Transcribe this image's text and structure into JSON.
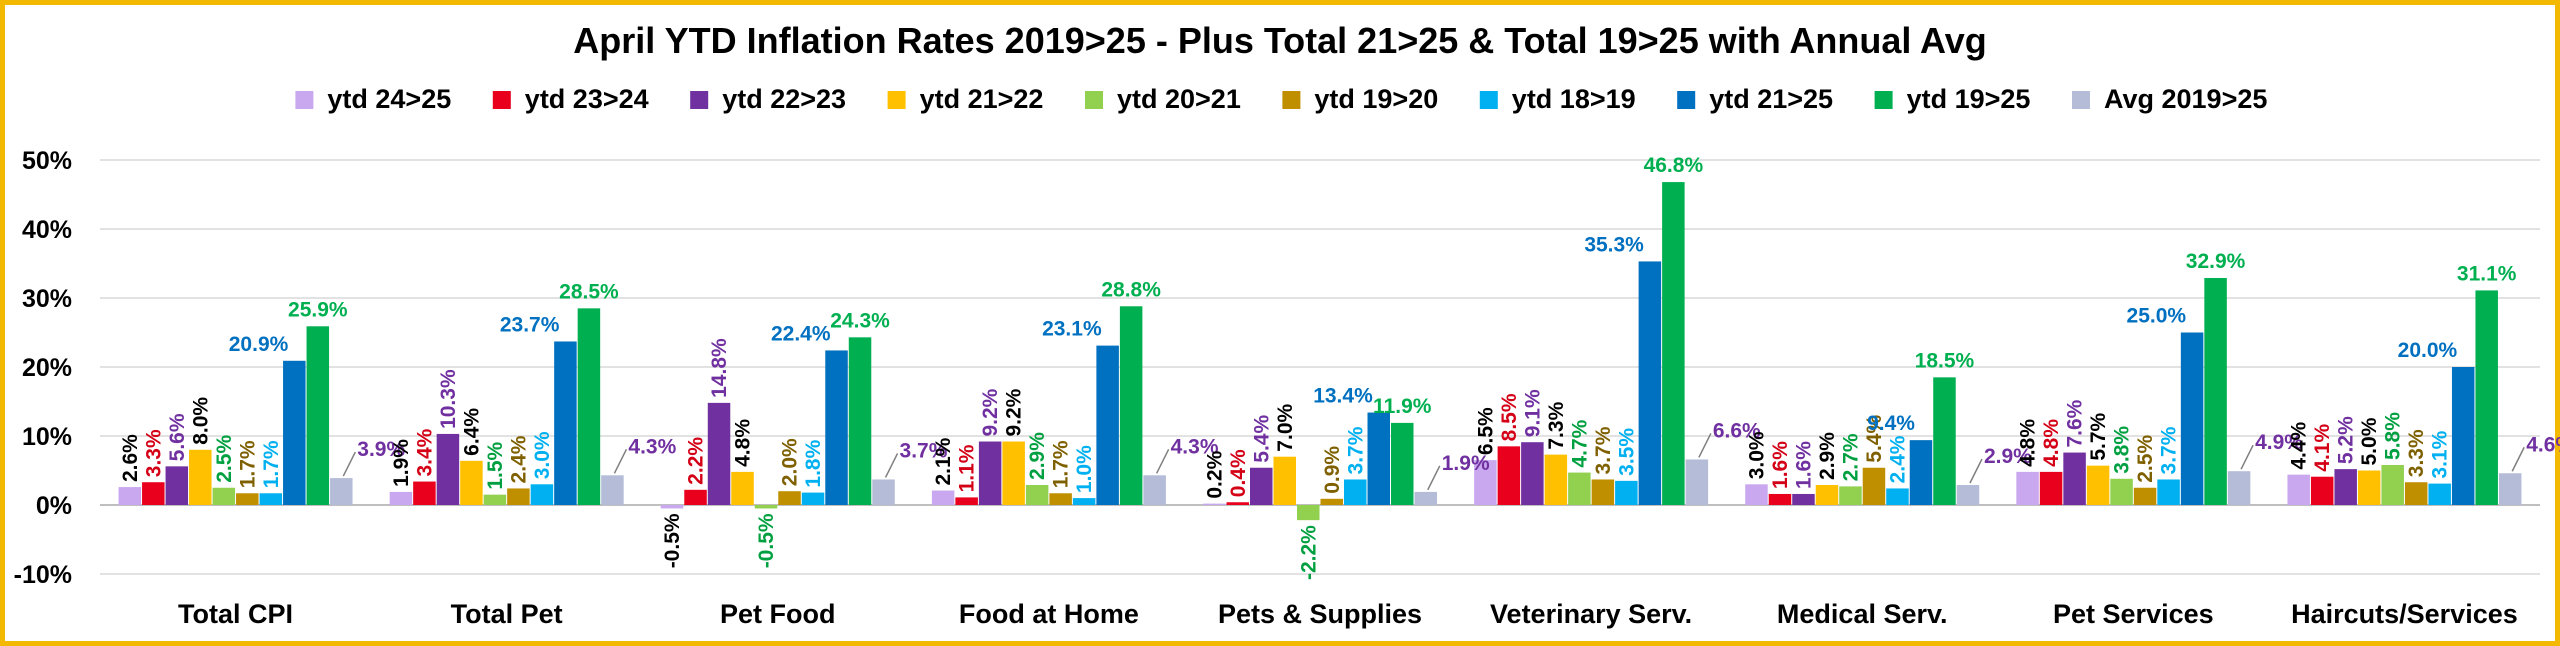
{
  "chart_data": {
    "type": "bar",
    "title": "April YTD Inflation Rates 2019>25 - Plus Total 21>25 & Total 19>25 with Annual Avg",
    "categories": [
      "Total CPI",
      "Total Pet",
      "Pet Food",
      "Food at Home",
      "Pets & Supplies",
      "Veterinary Serv.",
      "Medical Serv.",
      "Pet Services",
      "Haircuts/Services"
    ],
    "ylim": [
      -10,
      50
    ],
    "yticks": [
      "-10%",
      "0%",
      "10%",
      "20%",
      "30%",
      "40%",
      "50%"
    ],
    "ytick_values": [
      -10,
      0,
      10,
      20,
      30,
      40,
      50
    ],
    "grid": true,
    "legend_position": "top",
    "series": [
      {
        "name": "ytd 24>25",
        "color": "#c9a8ef",
        "label_color": "#000000",
        "values": [
          2.6,
          1.9,
          -0.5,
          2.1,
          0.2,
          6.5,
          3.0,
          4.8,
          4.4
        ],
        "labels": [
          "2.6%",
          "1.9%",
          "-0.5%",
          "2.1%",
          "0.2%",
          "6.5%",
          "3.0%",
          "4.8%",
          "4.4%"
        ]
      },
      {
        "name": "ytd 23>24",
        "color": "#e8001c",
        "label_color": "#d40016",
        "values": [
          3.3,
          3.4,
          2.2,
          1.1,
          0.4,
          8.5,
          1.6,
          4.8,
          4.1
        ],
        "labels": [
          "3.3%",
          "3.4%",
          "2.2%",
          "1.1%",
          "0.4%",
          "8.5%",
          "1.6%",
          "4.8%",
          "4.1%"
        ]
      },
      {
        "name": "ytd 22>23",
        "color": "#7030a0",
        "label_color": "#7030a0",
        "values": [
          5.6,
          10.3,
          14.8,
          9.2,
          5.4,
          9.1,
          1.6,
          7.6,
          5.2
        ],
        "labels": [
          "5.6%",
          "10.3%",
          "14.8%",
          "9.2%",
          "5.4%",
          "9.1%",
          "1.6%",
          "7.6%",
          "5.2%"
        ]
      },
      {
        "name": "ytd 21>22",
        "color": "#ffc000",
        "label_color": "#000000",
        "values": [
          8.0,
          6.4,
          4.8,
          9.2,
          7.0,
          7.3,
          2.9,
          5.7,
          5.0
        ],
        "labels": [
          "8.0%",
          "6.4%",
          "4.8%",
          "9.2%",
          "7.0%",
          "7.3%",
          "2.9%",
          "5.7%",
          "5.0%"
        ]
      },
      {
        "name": "ytd 20>21",
        "color": "#92d050",
        "label_color": "#00a040",
        "values": [
          2.5,
          1.5,
          -0.5,
          2.9,
          -2.2,
          4.7,
          2.7,
          3.8,
          5.8
        ],
        "labels": [
          "2.5%",
          "1.5%",
          "-0.5%",
          "2.9%",
          "-2.2%",
          "4.7%",
          "2.7%",
          "3.8%",
          "5.8%"
        ]
      },
      {
        "name": "ytd 19>20",
        "color": "#bf8f00",
        "label_color": "#7f6000",
        "values": [
          1.7,
          2.4,
          2.0,
          1.7,
          0.9,
          3.7,
          5.4,
          2.5,
          3.3
        ],
        "labels": [
          "1.7%",
          "2.4%",
          "2.0%",
          "1.7%",
          "0.9%",
          "3.7%",
          "5.4%",
          "2.5%",
          "3.3%"
        ]
      },
      {
        "name": "ytd 18>19",
        "color": "#00b0f0",
        "label_color": "#00b0f0",
        "values": [
          1.7,
          3.0,
          1.8,
          1.0,
          3.7,
          3.5,
          2.4,
          3.7,
          3.1
        ],
        "labels": [
          "1.7%",
          "3.0%",
          "1.8%",
          "1.0%",
          "3.7%",
          "3.5%",
          "2.4%",
          "3.7%",
          "3.1%"
        ]
      },
      {
        "name": "ytd 21>25",
        "color": "#0070c0",
        "label_color": "#0070c0",
        "values": [
          20.9,
          23.7,
          22.4,
          23.1,
          13.4,
          35.3,
          9.4,
          25.0,
          20.0
        ],
        "labels": [
          "20.9%",
          "23.7%",
          "22.4%",
          "23.1%",
          "13.4%",
          "35.3%",
          "9.4%",
          "25.0%",
          "20.0%"
        ]
      },
      {
        "name": "ytd 19>25",
        "color": "#00b050",
        "label_color": "#00b050",
        "values": [
          25.9,
          28.5,
          24.3,
          28.8,
          11.9,
          46.8,
          18.5,
          32.9,
          31.1
        ],
        "labels": [
          "25.9%",
          "28.5%",
          "24.3%",
          "28.8%",
          "11.9%",
          "46.8%",
          "18.5%",
          "32.9%",
          "31.1%"
        ]
      },
      {
        "name": "Avg 2019>25",
        "color": "#b4bcd8",
        "label_color": "#7030a0",
        "values": [
          3.9,
          4.3,
          3.7,
          4.3,
          1.9,
          6.6,
          2.9,
          4.9,
          4.6
        ],
        "labels": [
          "3.9%",
          "4.3%",
          "3.7%",
          "4.3%",
          "1.9%",
          "6.6%",
          "2.9%",
          "4.9%",
          "4.6%"
        ]
      }
    ]
  }
}
